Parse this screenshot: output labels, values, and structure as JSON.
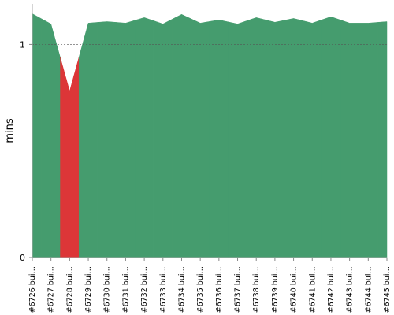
{
  "chart_data": {
    "type": "area",
    "y_label": "mins",
    "categories": [
      "#6726 bui…",
      "#6727 bui…",
      "#6728 bui…",
      "#6729 bui…",
      "#6730 bui…",
      "#6731 bui…",
      "#6732 bui…",
      "#6733 bui…",
      "#6734 bui…",
      "#6735 bui…",
      "#6736 bui…",
      "#6737 bui…",
      "#6738 bui…",
      "#6739 bui…",
      "#6740 bui…",
      "#6741 bui…",
      "#6742 bui…",
      "#6743 bui…",
      "#6744 bui…",
      "#6745 bui…"
    ],
    "values": [
      1.144,
      1.096,
      0.781,
      1.1,
      1.107,
      1.1,
      1.126,
      1.096,
      1.141,
      1.1,
      1.115,
      1.096,
      1.126,
      1.104,
      1.122,
      1.1,
      1.13,
      1.1,
      1.1,
      1.107
    ],
    "colors": [
      "#459c6e",
      "#459c6e",
      "#dc3638",
      "#459c6e",
      "#459c6e",
      "#459c6e",
      "#459c6e",
      "#459c6e",
      "#459c6e",
      "#459c6e",
      "#459c6e",
      "#459c6e",
      "#459c6e",
      "#459c6e",
      "#459c6e",
      "#459c6e",
      "#459c6e",
      "#459c6e",
      "#459c6e",
      "#459c6e"
    ],
    "ylim": [
      0,
      1.19
    ],
    "yticks": [
      0,
      1
    ]
  }
}
